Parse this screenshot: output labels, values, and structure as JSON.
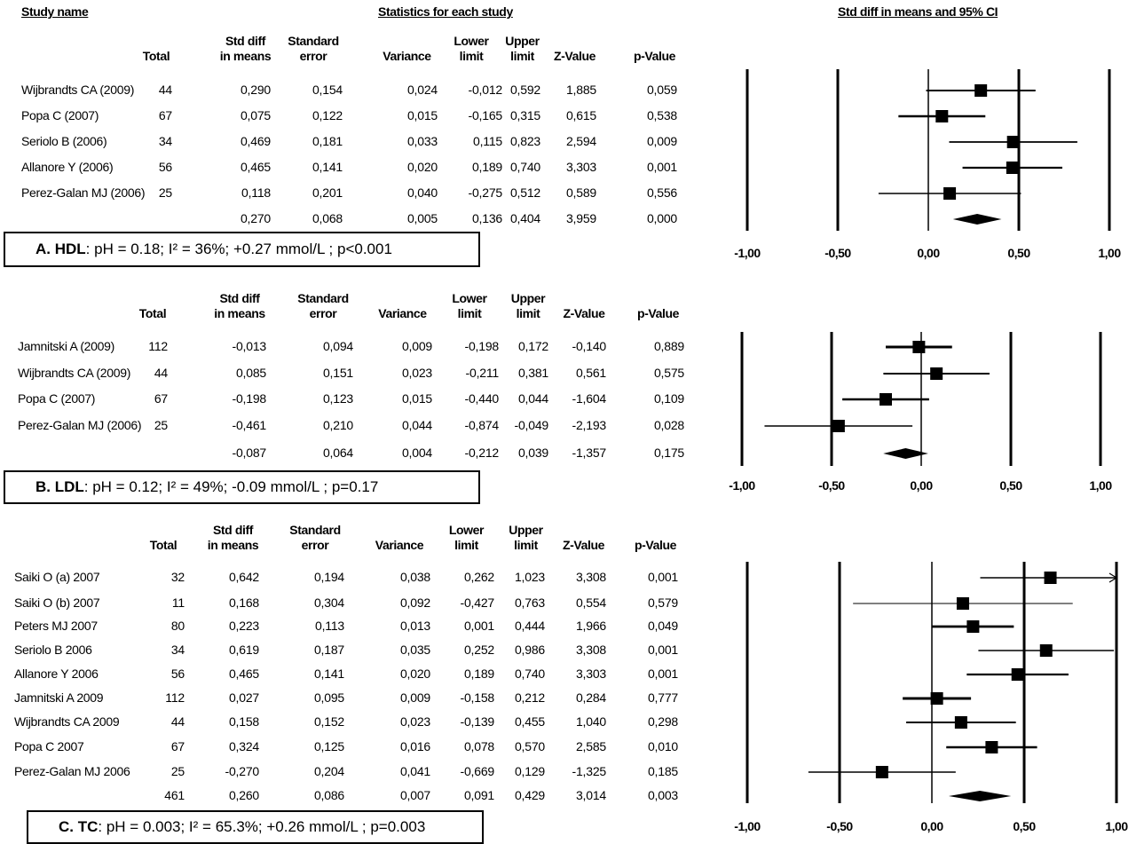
{
  "headers": {
    "study": "Study name",
    "stats": "Statistics for each study",
    "ci": "Std diff in means and 95%  CI"
  },
  "columns": {
    "total": [
      "",
      "Total"
    ],
    "smd": [
      "Std diff",
      "in means"
    ],
    "se": [
      "Standard",
      "error"
    ],
    "variance": [
      "",
      "Variance"
    ],
    "lower": [
      "Lower",
      "limit"
    ],
    "upper": [
      "Upper",
      "limit"
    ],
    "z": [
      "",
      "Z-Value"
    ],
    "p": [
      "",
      "p-Value"
    ]
  },
  "chart_data": [
    {
      "type": "forest",
      "label_bold": "A. HDL",
      "label_rest": ": pH = 0.18; I² = 36%; +0.27 mmol/L ; p<0.001",
      "xlim": [
        -1,
        1
      ],
      "ticks": [
        "-1,00",
        "-0,50",
        "0,00",
        "0,50",
        "1,00"
      ],
      "tick_values": [
        -1,
        -0.5,
        0,
        0.5,
        1
      ],
      "studies": [
        {
          "name": "Wijbrandts CA (2009)",
          "total": "44",
          "smd": "0,290",
          "se": "0,154",
          "var": "0,024",
          "lower": "-0,012",
          "upper": "0,592",
          "z": "1,885",
          "p": "0,059"
        },
        {
          "name": "Popa C (2007)",
          "total": "67",
          "smd": "0,075",
          "se": "0,122",
          "var": "0,015",
          "lower": "-0,165",
          "upper": "0,315",
          "z": "0,615",
          "p": "0,538"
        },
        {
          "name": "Seriolo B (2006)",
          "total": "34",
          "smd": "0,469",
          "se": "0,181",
          "var": "0,033",
          "lower": "0,115",
          "upper": "0,823",
          "z": "2,594",
          "p": "0,009"
        },
        {
          "name": "Allanore Y (2006)",
          "total": "56",
          "smd": "0,465",
          "se": "0,141",
          "var": "0,020",
          "lower": "0,189",
          "upper": "0,740",
          "z": "3,303",
          "p": "0,001"
        },
        {
          "name": "Perez-Galan MJ (2006)",
          "total": "25",
          "smd": "0,118",
          "se": "0,201",
          "var": "0,040",
          "lower": "-0,275",
          "upper": "0,512",
          "z": "0,589",
          "p": "0,556"
        }
      ],
      "pooled": {
        "total": "",
        "smd": "0,270",
        "se": "0,068",
        "var": "0,005",
        "lower": "0,136",
        "upper": "0,404",
        "z": "3,959",
        "p": "0,000"
      }
    },
    {
      "type": "forest",
      "label_bold": "B. LDL",
      "label_rest": ": pH = 0.12; I² = 49%; -0.09 mmol/L ; p=0.17",
      "xlim": [
        -1,
        1
      ],
      "ticks": [
        "-1,00",
        "-0,50",
        "0,00",
        "0,50",
        "1,00"
      ],
      "tick_values": [
        -1,
        -0.5,
        0,
        0.5,
        1
      ],
      "studies": [
        {
          "name": "Jamnitski A (2009)",
          "total": "112",
          "smd": "-0,013",
          "se": "0,094",
          "var": "0,009",
          "lower": "-0,198",
          "upper": "0,172",
          "z": "-0,140",
          "p": "0,889"
        },
        {
          "name": "Wijbrandts CA (2009)",
          "total": "44",
          "smd": "0,085",
          "se": "0,151",
          "var": "0,023",
          "lower": "-0,211",
          "upper": "0,381",
          "z": "0,561",
          "p": "0,575"
        },
        {
          "name": "Popa C (2007)",
          "total": "67",
          "smd": "-0,198",
          "se": "0,123",
          "var": "0,015",
          "lower": "-0,440",
          "upper": "0,044",
          "z": "-1,604",
          "p": "0,109"
        },
        {
          "name": "Perez-Galan MJ (2006)",
          "total": "25",
          "smd": "-0,461",
          "se": "0,210",
          "var": "0,044",
          "lower": "-0,874",
          "upper": "-0,049",
          "z": "-2,193",
          "p": "0,028"
        }
      ],
      "pooled": {
        "total": "",
        "smd": "-0,087",
        "se": "0,064",
        "var": "0,004",
        "lower": "-0,212",
        "upper": "0,039",
        "z": "-1,357",
        "p": "0,175"
      }
    },
    {
      "type": "forest",
      "label_bold": "C. TC",
      "label_rest": ": pH = 0.003; I² = 65.3%; +0.26 mmol/L ; p=0.003",
      "xlim": [
        -1,
        1
      ],
      "ticks": [
        "-1,00",
        "-0,50",
        "0,00",
        "0,50",
        "1,00"
      ],
      "tick_values": [
        -1,
        -0.5,
        0,
        0.5,
        1
      ],
      "studies": [
        {
          "name": "Saiki O (a) 2007",
          "total": "32",
          "smd": "0,642",
          "se": "0,194",
          "var": "0,038",
          "lower": "0,262",
          "upper": "1,023",
          "z": "3,308",
          "p": "0,001"
        },
        {
          "name": "Saiki O (b) 2007",
          "total": "11",
          "smd": "0,168",
          "se": "0,304",
          "var": "0,092",
          "lower": "-0,427",
          "upper": "0,763",
          "z": "0,554",
          "p": "0,579"
        },
        {
          "name": "Peters MJ 2007",
          "total": "80",
          "smd": "0,223",
          "se": "0,113",
          "var": "0,013",
          "lower": "0,001",
          "upper": "0,444",
          "z": "1,966",
          "p": "0,049"
        },
        {
          "name": "Seriolo B 2006",
          "total": "34",
          "smd": "0,619",
          "se": "0,187",
          "var": "0,035",
          "lower": "0,252",
          "upper": "0,986",
          "z": "3,308",
          "p": "0,001"
        },
        {
          "name": "Allanore Y 2006",
          "total": "56",
          "smd": "0,465",
          "se": "0,141",
          "var": "0,020",
          "lower": "0,189",
          "upper": "0,740",
          "z": "3,303",
          "p": "0,001"
        },
        {
          "name": "Jamnitski A 2009",
          "total": "112",
          "smd": "0,027",
          "se": "0,095",
          "var": "0,009",
          "lower": "-0,158",
          "upper": "0,212",
          "z": "0,284",
          "p": "0,777"
        },
        {
          "name": "Wijbrandts CA 2009",
          "total": "44",
          "smd": "0,158",
          "se": "0,152",
          "var": "0,023",
          "lower": "-0,139",
          "upper": "0,455",
          "z": "1,040",
          "p": "0,298"
        },
        {
          "name": "Popa C 2007",
          "total": "67",
          "smd": "0,324",
          "se": "0,125",
          "var": "0,016",
          "lower": "0,078",
          "upper": "0,570",
          "z": "2,585",
          "p": "0,010"
        },
        {
          "name": "Perez-Galan MJ 2006",
          "total": "25",
          "smd": "-0,270",
          "se": "0,204",
          "var": "0,041",
          "lower": "-0,669",
          "upper": "0,129",
          "z": "-1,325",
          "p": "0,185"
        }
      ],
      "pooled": {
        "total": "461",
        "smd": "0,260",
        "se": "0,086",
        "var": "0,007",
        "lower": "0,091",
        "upper": "0,429",
        "z": "3,014",
        "p": "0,003"
      }
    }
  ]
}
